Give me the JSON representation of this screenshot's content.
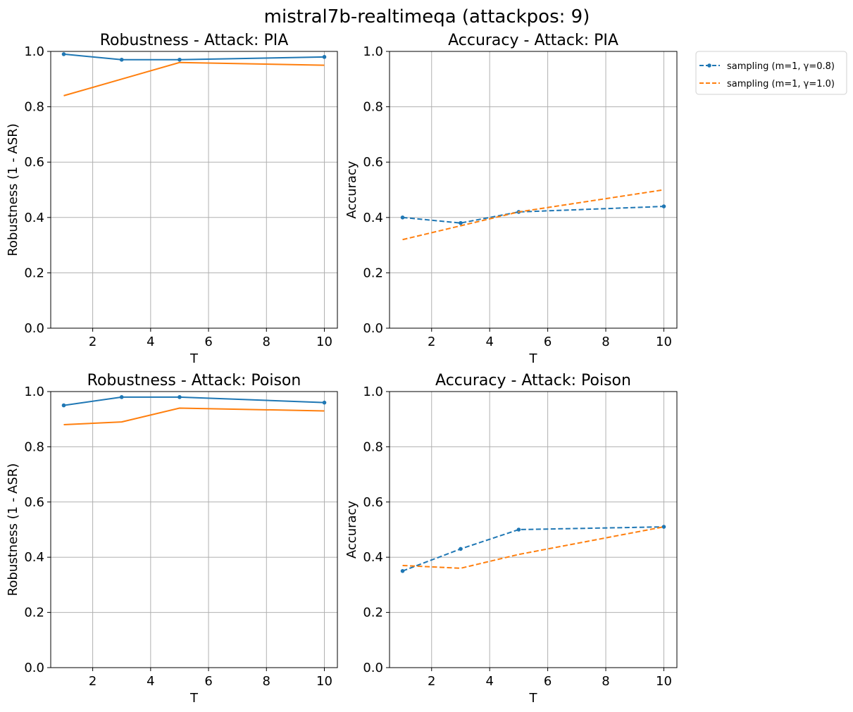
{
  "figure": {
    "suptitle": "mistral7b-realtimeqa (attackpos: 9)"
  },
  "legend": {
    "placement": "outside-right",
    "entries": [
      {
        "label": "sampling (m=1, γ=0.8)",
        "color": "#1f77b4",
        "style": "dashed",
        "marker": "dot"
      },
      {
        "label": "sampling (m=1, γ=1.0)",
        "color": "#ff7f0e",
        "style": "dashed",
        "marker": "none"
      }
    ]
  },
  "chart_data": [
    {
      "type": "line",
      "title": "Robustness - Attack: PIA",
      "xlabel": "T",
      "ylabel": "Robustness (1 - ASR)",
      "xlim": [
        0.55,
        10.45
      ],
      "ylim": [
        0,
        1.0
      ],
      "xticks": [
        2,
        4,
        6,
        8,
        10
      ],
      "yticks": [
        0.0,
        0.2,
        0.4,
        0.6,
        0.8,
        1.0
      ],
      "grid": true,
      "series": [
        {
          "color": "#1f77b4",
          "style": "solid",
          "marker": true,
          "x": [
            1,
            3,
            5,
            10
          ],
          "y": [
            0.99,
            0.97,
            0.97,
            0.98
          ]
        },
        {
          "color": "#ff7f0e",
          "style": "solid",
          "marker": false,
          "x": [
            1,
            3,
            5,
            10
          ],
          "y": [
            0.84,
            0.9,
            0.96,
            0.95
          ]
        }
      ]
    },
    {
      "type": "line",
      "title": "Accuracy - Attack: PIA",
      "xlabel": "T",
      "ylabel": "Accuracy",
      "xlim": [
        0.55,
        10.45
      ],
      "ylim": [
        0,
        1.0
      ],
      "xticks": [
        2,
        4,
        6,
        8,
        10
      ],
      "yticks": [
        0.0,
        0.2,
        0.4,
        0.6,
        0.8,
        1.0
      ],
      "grid": true,
      "series": [
        {
          "name": "sampling (m=1, γ=0.8)",
          "color": "#1f77b4",
          "style": "dashed",
          "marker": true,
          "x": [
            1,
            3,
            5,
            10
          ],
          "y": [
            0.4,
            0.38,
            0.42,
            0.44
          ]
        },
        {
          "name": "sampling (m=1, γ=1.0)",
          "color": "#ff7f0e",
          "style": "dashed",
          "marker": false,
          "x": [
            1,
            3,
            5,
            10
          ],
          "y": [
            0.32,
            0.37,
            0.42,
            0.5
          ]
        }
      ]
    },
    {
      "type": "line",
      "title": "Robustness - Attack: Poison",
      "xlabel": "T",
      "ylabel": "Robustness (1 - ASR)",
      "xlim": [
        0.55,
        10.45
      ],
      "ylim": [
        0,
        1.0
      ],
      "xticks": [
        2,
        4,
        6,
        8,
        10
      ],
      "yticks": [
        0.0,
        0.2,
        0.4,
        0.6,
        0.8,
        1.0
      ],
      "grid": true,
      "series": [
        {
          "color": "#1f77b4",
          "style": "solid",
          "marker": true,
          "x": [
            1,
            3,
            5,
            10
          ],
          "y": [
            0.95,
            0.98,
            0.98,
            0.96
          ]
        },
        {
          "color": "#ff7f0e",
          "style": "solid",
          "marker": false,
          "x": [
            1,
            3,
            5,
            10
          ],
          "y": [
            0.88,
            0.89,
            0.94,
            0.93
          ]
        }
      ]
    },
    {
      "type": "line",
      "title": "Accuracy - Attack: Poison",
      "xlabel": "T",
      "ylabel": "Accuracy",
      "xlim": [
        0.55,
        10.45
      ],
      "ylim": [
        0,
        1.0
      ],
      "xticks": [
        2,
        4,
        6,
        8,
        10
      ],
      "yticks": [
        0.0,
        0.2,
        0.4,
        0.6,
        0.8,
        1.0
      ],
      "grid": true,
      "series": [
        {
          "name": "sampling (m=1, γ=0.8)",
          "color": "#1f77b4",
          "style": "dashed",
          "marker": true,
          "x": [
            1,
            3,
            5,
            10
          ],
          "y": [
            0.35,
            0.43,
            0.5,
            0.51
          ]
        },
        {
          "name": "sampling (m=1, γ=1.0)",
          "color": "#ff7f0e",
          "style": "dashed",
          "marker": false,
          "x": [
            1,
            3,
            5,
            10
          ],
          "y": [
            0.37,
            0.36,
            0.41,
            0.51
          ]
        }
      ]
    }
  ]
}
